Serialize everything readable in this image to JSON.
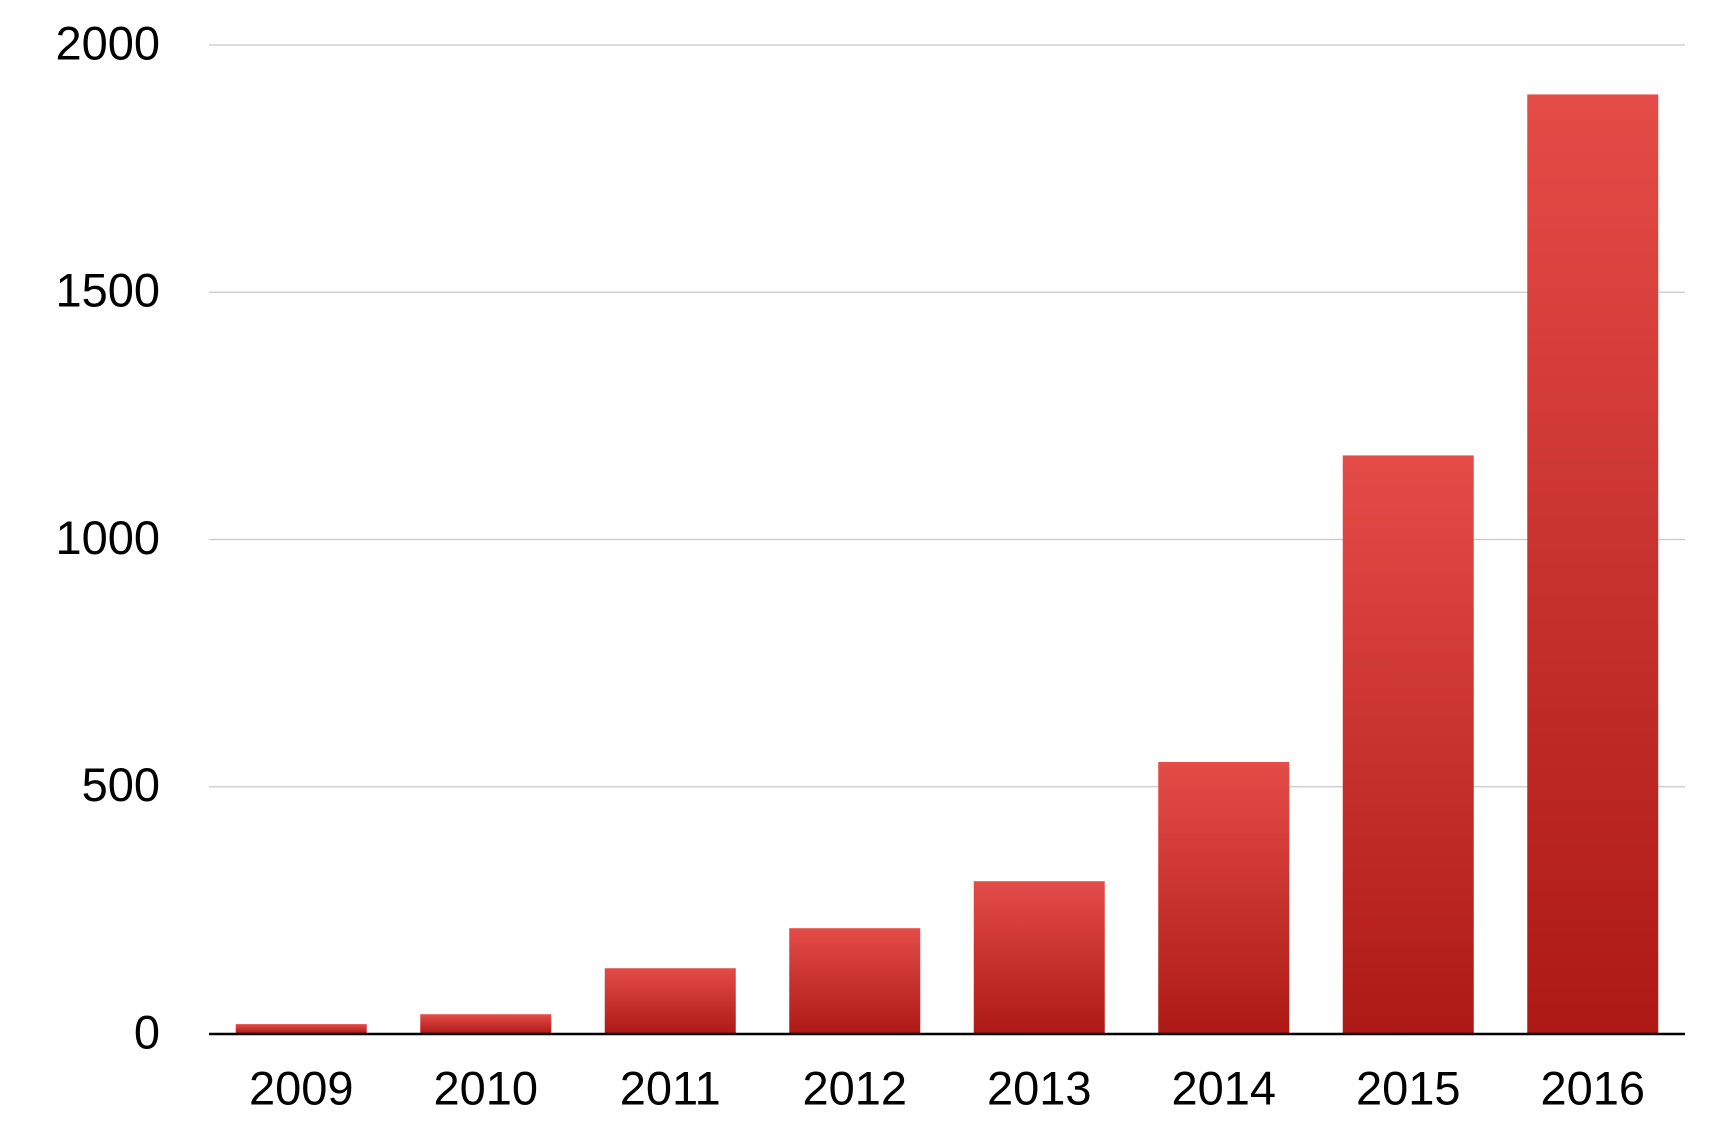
{
  "chart_data": {
    "type": "bar",
    "categories": [
      "2009",
      "2010",
      "2011",
      "2012",
      "2013",
      "2014",
      "2015",
      "2016"
    ],
    "values": [
      20,
      40,
      133,
      214,
      309,
      550,
      1170,
      1900
    ],
    "gradient": [
      "#e44c48",
      "#ad1915"
    ],
    "ylim": [
      0,
      2000
    ],
    "yticks": [
      0,
      500,
      1000,
      1500,
      2000
    ],
    "grid": true
  }
}
